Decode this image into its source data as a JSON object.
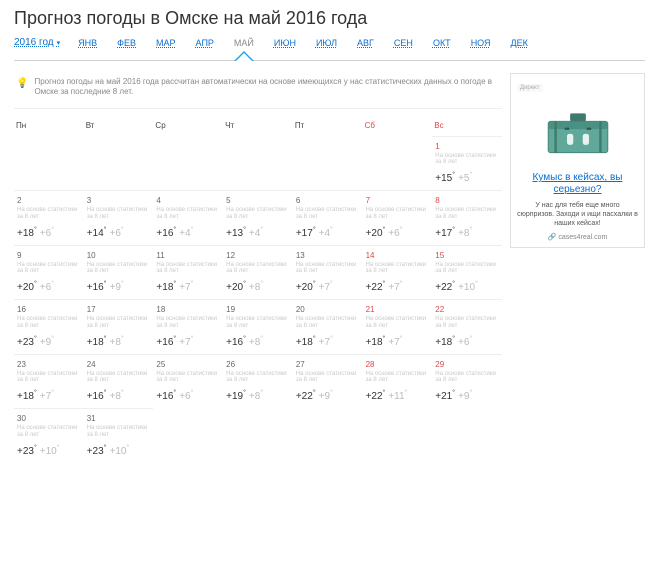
{
  "title": "Прогноз погоды в Омске на май 2016 года",
  "year_selector": "2016 год",
  "months": [
    {
      "label": "ЯНВ",
      "active": false
    },
    {
      "label": "ФЕВ",
      "active": false
    },
    {
      "label": "МАР",
      "active": false
    },
    {
      "label": "АПР",
      "active": false
    },
    {
      "label": "МАЙ",
      "active": true
    },
    {
      "label": "ИЮН",
      "active": false
    },
    {
      "label": "ИЮЛ",
      "active": false
    },
    {
      "label": "АВГ",
      "active": false
    },
    {
      "label": "СЕН",
      "active": false
    },
    {
      "label": "ОКТ",
      "active": false
    },
    {
      "label": "НОЯ",
      "active": false
    },
    {
      "label": "ДЕК",
      "active": false
    }
  ],
  "notice": "Прогноз погоды на май 2016 года рассчитан автоматически на основе имеющихся у нас статистических данных о погоде в Омске за последние 8 лет.",
  "dows": [
    {
      "label": "Пн",
      "weekend": false
    },
    {
      "label": "Вт",
      "weekend": false
    },
    {
      "label": "Ср",
      "weekend": false
    },
    {
      "label": "Чт",
      "weekend": false
    },
    {
      "label": "Пт",
      "weekend": false
    },
    {
      "label": "Сб",
      "weekend": true
    },
    {
      "label": "Вс",
      "weekend": true
    }
  ],
  "stat_note": "На основе статистики за 8 лет",
  "leading_empty": 6,
  "days": [
    {
      "d": 1,
      "hi": "+15",
      "lo": "+5",
      "we": true
    },
    {
      "d": 2,
      "hi": "+18",
      "lo": "+6",
      "we": false
    },
    {
      "d": 3,
      "hi": "+14",
      "lo": "+6",
      "we": false
    },
    {
      "d": 4,
      "hi": "+16",
      "lo": "+4",
      "we": false
    },
    {
      "d": 5,
      "hi": "+13",
      "lo": "+4",
      "we": false
    },
    {
      "d": 6,
      "hi": "+17",
      "lo": "+4",
      "we": false
    },
    {
      "d": 7,
      "hi": "+20",
      "lo": "+6",
      "we": true
    },
    {
      "d": 8,
      "hi": "+17",
      "lo": "+8",
      "we": true
    },
    {
      "d": 9,
      "hi": "+20",
      "lo": "+6",
      "we": false
    },
    {
      "d": 10,
      "hi": "+16",
      "lo": "+9",
      "we": false
    },
    {
      "d": 11,
      "hi": "+18",
      "lo": "+7",
      "we": false
    },
    {
      "d": 12,
      "hi": "+20",
      "lo": "+8",
      "we": false
    },
    {
      "d": 13,
      "hi": "+20",
      "lo": "+7",
      "we": false
    },
    {
      "d": 14,
      "hi": "+22",
      "lo": "+7",
      "we": true
    },
    {
      "d": 15,
      "hi": "+22",
      "lo": "+10",
      "we": true
    },
    {
      "d": 16,
      "hi": "+23",
      "lo": "+9",
      "we": false
    },
    {
      "d": 17,
      "hi": "+18",
      "lo": "+8",
      "we": false
    },
    {
      "d": 18,
      "hi": "+16",
      "lo": "+7",
      "we": false
    },
    {
      "d": 19,
      "hi": "+16",
      "lo": "+8",
      "we": false
    },
    {
      "d": 20,
      "hi": "+18",
      "lo": "+7",
      "we": false
    },
    {
      "d": 21,
      "hi": "+18",
      "lo": "+7",
      "we": true
    },
    {
      "d": 22,
      "hi": "+18",
      "lo": "+6",
      "we": true
    },
    {
      "d": 23,
      "hi": "+18",
      "lo": "+7",
      "we": false
    },
    {
      "d": 24,
      "hi": "+16",
      "lo": "+8",
      "we": false
    },
    {
      "d": 25,
      "hi": "+16",
      "lo": "+6",
      "we": false
    },
    {
      "d": 26,
      "hi": "+19",
      "lo": "+8",
      "we": false
    },
    {
      "d": 27,
      "hi": "+22",
      "lo": "+9",
      "we": false
    },
    {
      "d": 28,
      "hi": "+22",
      "lo": "+11",
      "we": true
    },
    {
      "d": 29,
      "hi": "+21",
      "lo": "+9",
      "we": true
    },
    {
      "d": 30,
      "hi": "+23",
      "lo": "+10",
      "we": false
    },
    {
      "d": 31,
      "hi": "+23",
      "lo": "+10",
      "we": false
    }
  ],
  "ad": {
    "label": "Директ",
    "title": "Кумыс в кейсах, вы серьезно?",
    "desc": "У нас для тебя еще много сюрпризов. Заходи и ищи пасхалки в наших кейсах!",
    "domain": "cases4real.com",
    "case_color": "#5fa89a",
    "case_dark": "#3f7a6e"
  }
}
